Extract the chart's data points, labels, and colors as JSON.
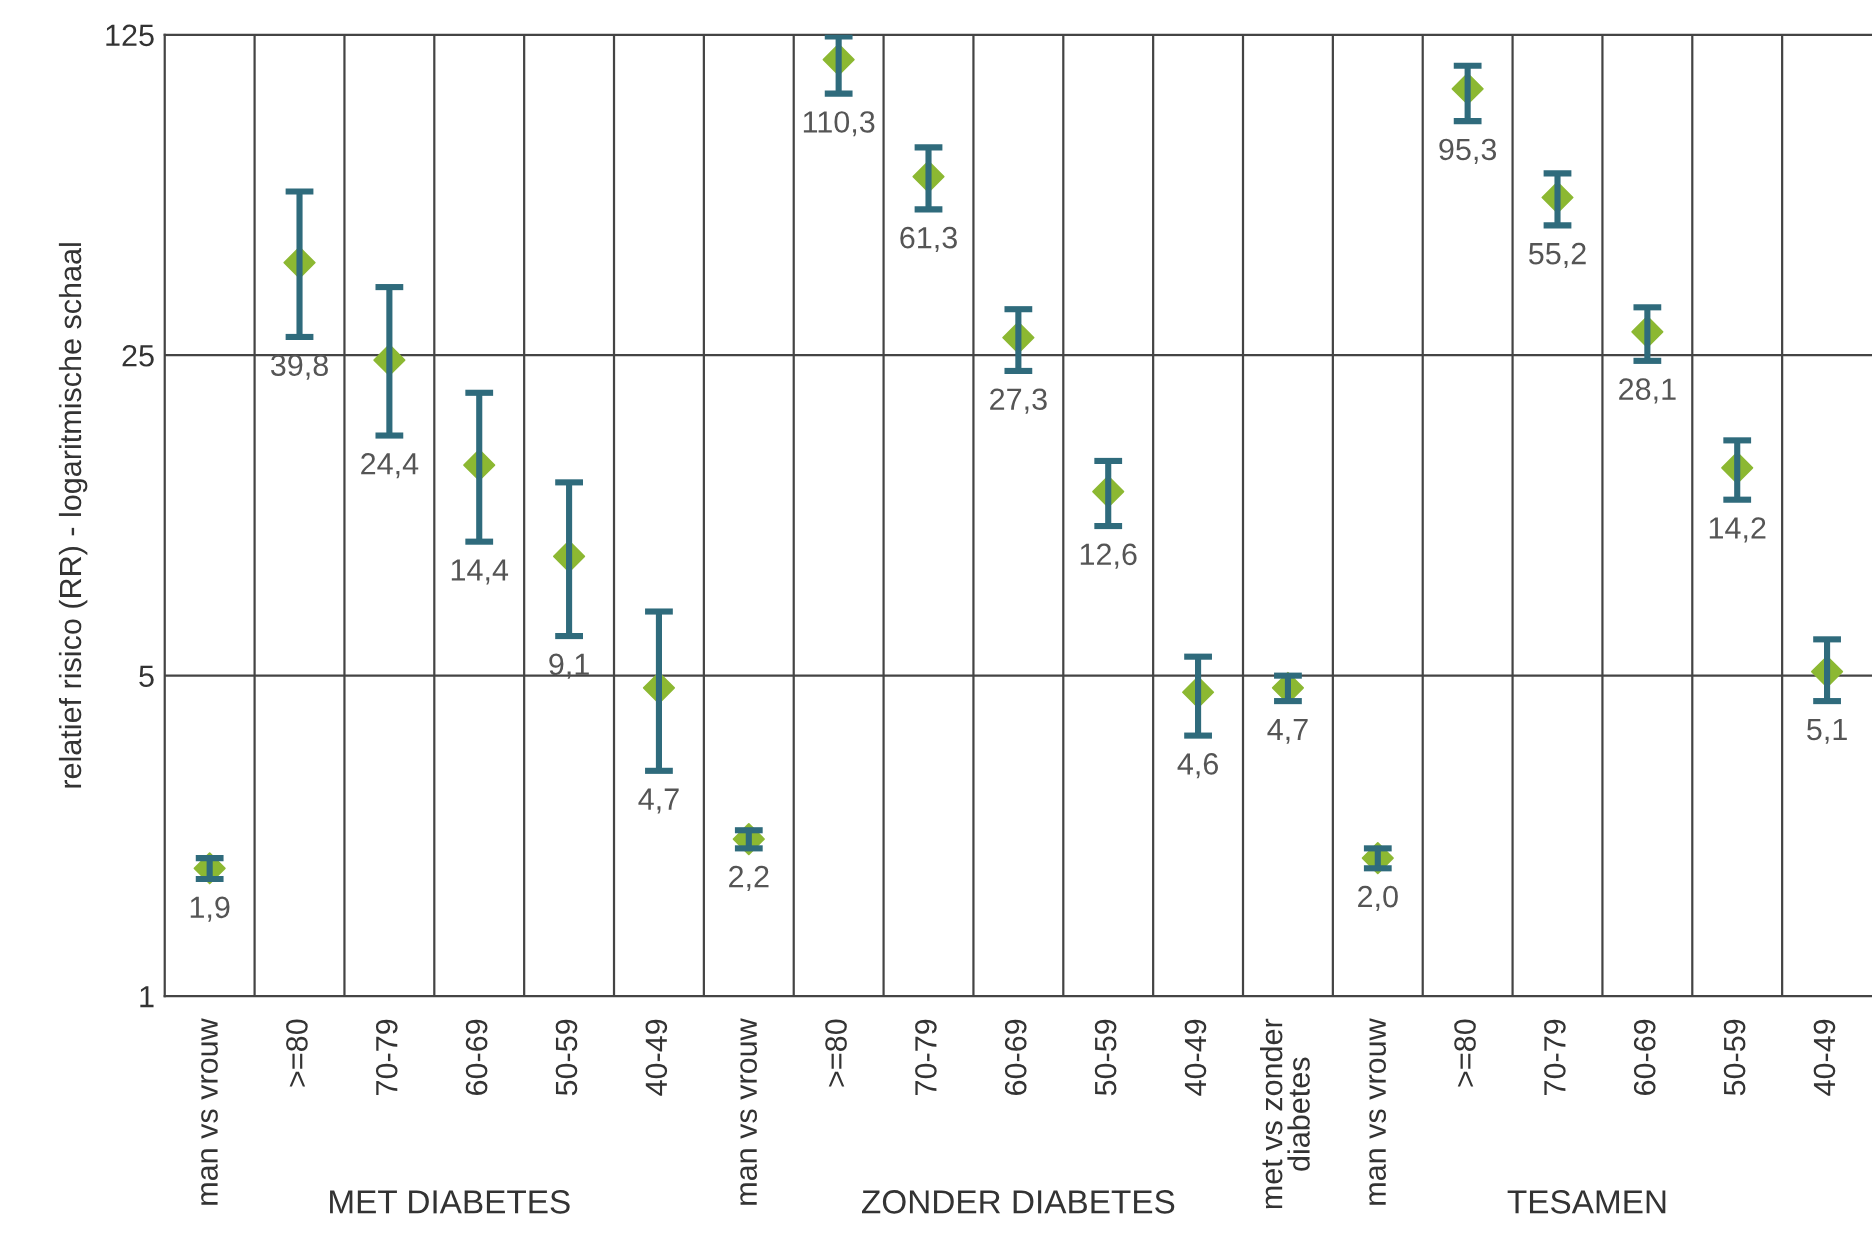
{
  "chart_data": {
    "type": "scatter",
    "ylabel": "relatief risico (RR) - logaritmische schaal",
    "categories": [
      "man vs vrouw",
      ">=80",
      "70-79",
      "60-69",
      "50-59",
      "40-49",
      "man vs vrouw",
      ">=80",
      "70-79",
      "60-69",
      "50-59",
      "40-49",
      "met vs zonder diabetes",
      "man vs vrouw",
      ">=80",
      "70-79",
      "60-69",
      "50-59",
      "40-49"
    ],
    "series": [
      {
        "color": "#8cb832",
        "values": [
          1.9,
          39.8,
          24.4,
          14.4,
          9.1,
          4.7,
          2.2,
          110.3,
          61.3,
          27.3,
          12.6,
          4.6,
          4.7,
          2.0,
          95.3,
          55.2,
          28.1,
          14.2,
          5.1
        ],
        "errors": [
          [
            1.8,
            2.0
          ],
          [
            27.4,
            56.9
          ],
          [
            16.7,
            35.2
          ],
          [
            9.8,
            20.7
          ],
          [
            6.1,
            13.2
          ],
          [
            3.1,
            6.9
          ],
          [
            2.1,
            2.3
          ],
          [
            93,
            124
          ],
          [
            52,
            71
          ],
          [
            23.1,
            31.5
          ],
          [
            10.6,
            14.7
          ],
          [
            3.7,
            5.5
          ],
          [
            4.4,
            5.0
          ],
          [
            1.9,
            2.1
          ],
          [
            81,
            107
          ],
          [
            48,
            62.3
          ],
          [
            24.3,
            31.8
          ],
          [
            12.1,
            16.3
          ],
          [
            4.4,
            6.0
          ]
        ],
        "value_labels": [
          "1,9",
          "39,8",
          "24,4",
          "14,4",
          "9,1",
          "4,7",
          "2,2",
          "110,3",
          "61,3",
          "27,3",
          "12,6",
          "4,6",
          "4,7",
          "2,0",
          "95,3",
          "55,2",
          "28,1",
          "14,2",
          "5,1"
        ]
      }
    ],
    "log": "y",
    "ylim": [
      1,
      125
    ],
    "yticks": [
      1,
      5,
      25,
      125
    ],
    "grid": true,
    "marker": "diamond",
    "annotations": [
      "MET DIABETES",
      "ZONDER DIABETES",
      "TESAMEN"
    ]
  }
}
